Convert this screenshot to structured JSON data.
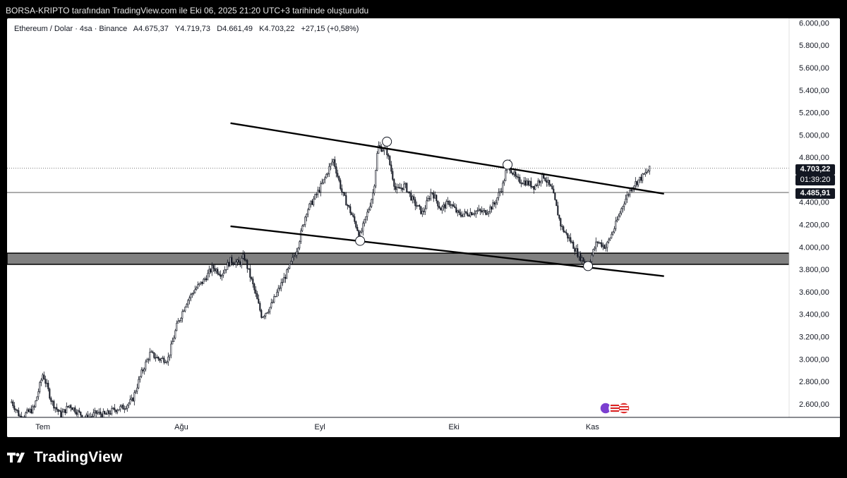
{
  "header": {
    "title": "BORSA-KRIPTO tarafından TradingView.com ile Eki 06, 2025 21:20 UTC+3 tarihinde oluşturuldu"
  },
  "symbol": {
    "name": "Ethereum / Dolar · 4sa · Binance",
    "open": "A4.675,37",
    "high": "Y4.719,73",
    "low": "D4.661,49",
    "close": "K4.703,22",
    "change": "+27,15 (+0,58%)"
  },
  "price_labels": {
    "last_price": "4.703,22",
    "countdown": "01:39:20",
    "level": "4.485,91"
  },
  "footer": {
    "brand": "TradingView"
  },
  "colors": {
    "background": "#ffffff",
    "candle": "#131722",
    "zone": "#808080",
    "trendline": "#000000",
    "frame": "#000000"
  },
  "chart_data": {
    "type": "candlestick",
    "title": "Ethereum / Dolar · 4sa · Binance",
    "x_ticks": [
      "Tem",
      "Ağu",
      "Eyl",
      "Eki",
      "Kas"
    ],
    "y_ticks": [
      "6.000,00",
      "5.800,00",
      "5.600,00",
      "5.400,00",
      "5.200,00",
      "5.000,00",
      "4.800,00",
      "4.600,00",
      "4.400,00",
      "4.200,00",
      "4.000,00",
      "3.800,00",
      "3.600,00",
      "3.400,00",
      "3.200,00",
      "3.000,00",
      "2.800,00",
      "2.600,00"
    ],
    "ylim": [
      2480,
      6040
    ],
    "last_price": 4703.22,
    "horizontal_level": 4485.91,
    "support_zone": [
      3845,
      3945
    ],
    "price_path": [
      [
        "2025-06-24",
        2620
      ],
      [
        "2025-06-26",
        2480
      ],
      [
        "2025-06-29",
        2560
      ],
      [
        "2025-07-01",
        2870
      ],
      [
        "2025-07-03",
        2620
      ],
      [
        "2025-07-05",
        2500
      ],
      [
        "2025-07-07",
        2590
      ],
      [
        "2025-07-09",
        2520
      ],
      [
        "2025-07-11",
        2470
      ],
      [
        "2025-07-13",
        2520
      ],
      [
        "2025-07-15",
        2500
      ],
      [
        "2025-07-17",
        2550
      ],
      [
        "2025-07-19",
        2570
      ],
      [
        "2025-07-21",
        2630
      ],
      [
        "2025-07-23",
        2870
      ],
      [
        "2025-07-25",
        3050
      ],
      [
        "2025-07-27",
        3000
      ],
      [
        "2025-07-29",
        3000
      ],
      [
        "2025-07-31",
        3300
      ],
      [
        "2025-08-02",
        3500
      ],
      [
        "2025-08-04",
        3620
      ],
      [
        "2025-08-06",
        3700
      ],
      [
        "2025-08-08",
        3820
      ],
      [
        "2025-08-10",
        3760
      ],
      [
        "2025-08-12",
        3880
      ],
      [
        "2025-08-14",
        3850
      ],
      [
        "2025-08-15",
        3920
      ],
      [
        "2025-08-17",
        3660
      ],
      [
        "2025-08-19",
        3380
      ],
      [
        "2025-08-21",
        3470
      ],
      [
        "2025-08-23",
        3640
      ],
      [
        "2025-08-25",
        3800
      ],
      [
        "2025-08-27",
        4000
      ],
      [
        "2025-08-29",
        4320
      ],
      [
        "2025-08-31",
        4450
      ],
      [
        "2025-09-02",
        4600
      ],
      [
        "2025-09-03",
        4700
      ],
      [
        "2025-09-04",
        4780
      ],
      [
        "2025-09-06",
        4480
      ],
      [
        "2025-09-08",
        4300
      ],
      [
        "2025-09-10",
        4100
      ],
      [
        "2025-09-12",
        4350
      ],
      [
        "2025-09-13",
        4500
      ],
      [
        "2025-09-14",
        4900
      ],
      [
        "2025-09-16",
        4850
      ],
      [
        "2025-09-18",
        4500
      ],
      [
        "2025-09-20",
        4550
      ],
      [
        "2025-09-22",
        4400
      ],
      [
        "2025-09-24",
        4300
      ],
      [
        "2025-09-26",
        4500
      ],
      [
        "2025-09-28",
        4340
      ],
      [
        "2025-09-30",
        4400
      ],
      [
        "2025-10-02",
        4290
      ],
      [
        "2025-10-04",
        4300
      ],
      [
        "2025-10-06",
        4320
      ],
      [
        "2025-10-08",
        4310
      ],
      [
        "2025-10-10",
        4380
      ],
      [
        "2025-10-12",
        4560
      ],
      [
        "2025-10-13",
        4750
      ],
      [
        "2025-10-15",
        4600
      ],
      [
        "2025-10-17",
        4580
      ],
      [
        "2025-10-19",
        4540
      ],
      [
        "2025-10-21",
        4640
      ],
      [
        "2025-10-23",
        4500
      ],
      [
        "2025-10-25",
        4180
      ],
      [
        "2025-10-27",
        4060
      ],
      [
        "2025-10-29",
        3920
      ],
      [
        "2025-10-31",
        3840
      ],
      [
        "2025-11-02",
        4050
      ],
      [
        "2025-11-04",
        4000
      ],
      [
        "2025-11-06",
        4180
      ],
      [
        "2025-11-08",
        4400
      ],
      [
        "2025-11-10",
        4550
      ],
      [
        "2025-11-12",
        4620
      ],
      [
        "2025-11-14",
        4703
      ]
    ],
    "trendlines": [
      {
        "name": "upper",
        "from": [
          "2025-08-12",
          5105
        ],
        "to": [
          "2025-11-17",
          4475
        ]
      },
      {
        "name": "lower",
        "from": [
          "2025-08-12",
          4185
        ],
        "to": [
          "2025-11-17",
          3740
        ]
      }
    ],
    "touch_points": [
      [
        "2025-09-10",
        4055
      ],
      [
        "2025-09-16",
        4940
      ],
      [
        "2025-10-13",
        4735
      ],
      [
        "2025-10-31",
        3830
      ]
    ]
  }
}
